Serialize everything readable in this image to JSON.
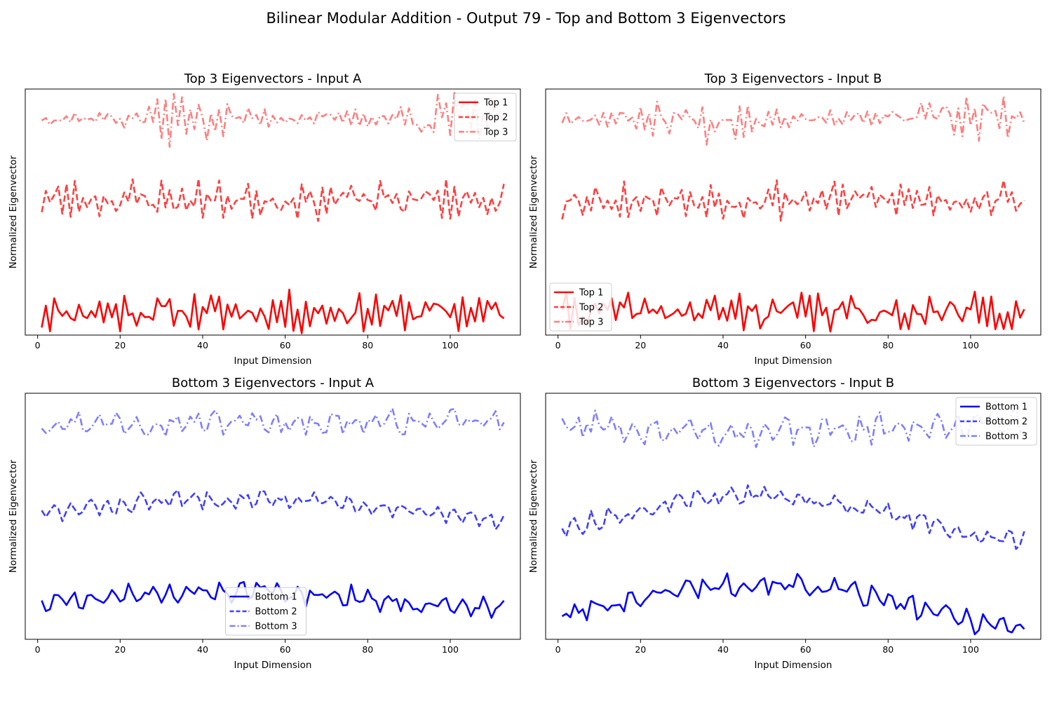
{
  "figure": {
    "title": "Bilinear Modular Addition - Output 79 - Top and Bottom 3 Eigenvectors"
  },
  "chart_data": [
    {
      "type": "line",
      "title": "Top 3 Eigenvectors - Input A",
      "xlabel": "Input Dimension",
      "ylabel": "Normalized Eigenvector",
      "xticks": [
        0,
        20,
        40,
        60,
        80,
        100
      ],
      "xlim": [
        -3,
        117
      ],
      "ylim": [
        -0.12,
        1.15
      ],
      "legend": "top-right",
      "series": [
        {
          "name": "Top 1",
          "color": "#ff0000",
          "dash": "solid",
          "alpha": 1.0,
          "offset": 0.0,
          "seed": 11,
          "amp": 0.09,
          "period": 2.1,
          "envelope": "flat",
          "trend": 0.0
        },
        {
          "name": "Top 2",
          "color": "#ff0000",
          "dash": "dashed",
          "alpha": 0.75,
          "offset": 0.58,
          "seed": 23,
          "amp": 0.09,
          "period": 2.3,
          "envelope": "flat",
          "trend": 0.0
        },
        {
          "name": "Top 3",
          "color": "#ff0000",
          "dash": "dashdot",
          "alpha": 0.5,
          "offset": 1.0,
          "seed": 37,
          "amp": 0.07,
          "period": 2.2,
          "envelope": "twobump",
          "trend": 0.0
        }
      ]
    },
    {
      "type": "line",
      "title": "Top 3 Eigenvectors - Input B",
      "xlabel": "Input Dimension",
      "ylabel": "Normalized Eigenvector",
      "xticks": [
        0,
        20,
        40,
        60,
        80,
        100
      ],
      "xlim": [
        -3,
        117
      ],
      "ylim": [
        -0.12,
        1.15
      ],
      "legend": "bottom-left",
      "series": [
        {
          "name": "Top 1",
          "color": "#ff0000",
          "dash": "solid",
          "alpha": 1.0,
          "offset": 0.0,
          "seed": 41,
          "amp": 0.09,
          "period": 2.1,
          "envelope": "flat",
          "trend": 0.0
        },
        {
          "name": "Top 2",
          "color": "#ff0000",
          "dash": "dashed",
          "alpha": 0.75,
          "offset": 0.58,
          "seed": 53,
          "amp": 0.09,
          "period": 2.3,
          "envelope": "flat",
          "trend": 0.0
        },
        {
          "name": "Top 3",
          "color": "#ff0000",
          "dash": "dashdot",
          "alpha": 0.5,
          "offset": 1.0,
          "seed": 67,
          "amp": 0.07,
          "period": 2.2,
          "envelope": "twobump",
          "trend": 0.0
        }
      ]
    },
    {
      "type": "line",
      "title": "Bottom 3 Eigenvectors - Input A",
      "xlabel": "Input Dimension",
      "ylabel": "Normalized Eigenvector",
      "xticks": [
        0,
        20,
        40,
        60,
        80,
        100
      ],
      "xlim": [
        -3,
        117
      ],
      "ylim": [
        -0.12,
        1.15
      ],
      "legend": "bottom-center",
      "series": [
        {
          "name": "Bottom 1",
          "color": "#0000ff",
          "dash": "solid",
          "alpha": 1.0,
          "offset": 0.08,
          "seed": 71,
          "amp": 0.055,
          "period": 4.5,
          "envelope": "flat",
          "trend": 0.05
        },
        {
          "name": "Bottom 2",
          "color": "#0000ff",
          "dash": "dashed",
          "alpha": 0.75,
          "offset": 0.55,
          "seed": 83,
          "amp": 0.045,
          "period": 4.2,
          "envelope": "flat",
          "trend": 0.06
        },
        {
          "name": "Bottom 3",
          "color": "#0000ff",
          "dash": "dashdot",
          "alpha": 0.5,
          "offset": 1.0,
          "seed": 97,
          "amp": 0.06,
          "period": 4.8,
          "envelope": "flat",
          "trend": 0.0
        }
      ]
    },
    {
      "type": "line",
      "title": "Bottom 3 Eigenvectors - Input B",
      "xlabel": "Input Dimension",
      "ylabel": "Normalized Eigenvector",
      "xticks": [
        0,
        20,
        40,
        60,
        80,
        100
      ],
      "xlim": [
        -3,
        117
      ],
      "ylim": [
        -0.12,
        1.15
      ],
      "legend": "top-right",
      "series": [
        {
          "name": "Bottom 1",
          "color": "#0000ff",
          "dash": "solid",
          "alpha": 1.0,
          "offset": 0.05,
          "seed": 101,
          "amp": 0.055,
          "period": 4.5,
          "envelope": "flat",
          "trend": 0.12
        },
        {
          "name": "Bottom 2",
          "color": "#0000ff",
          "dash": "dashed",
          "alpha": 0.75,
          "offset": 0.5,
          "seed": 113,
          "amp": 0.045,
          "period": 4.2,
          "envelope": "flat",
          "trend": 0.12
        },
        {
          "name": "Bottom 3",
          "color": "#0000ff",
          "dash": "dashdot",
          "alpha": 0.5,
          "offset": 0.98,
          "seed": 127,
          "amp": 0.07,
          "period": 4.6,
          "envelope": "flat",
          "trend": -0.03
        }
      ]
    }
  ]
}
